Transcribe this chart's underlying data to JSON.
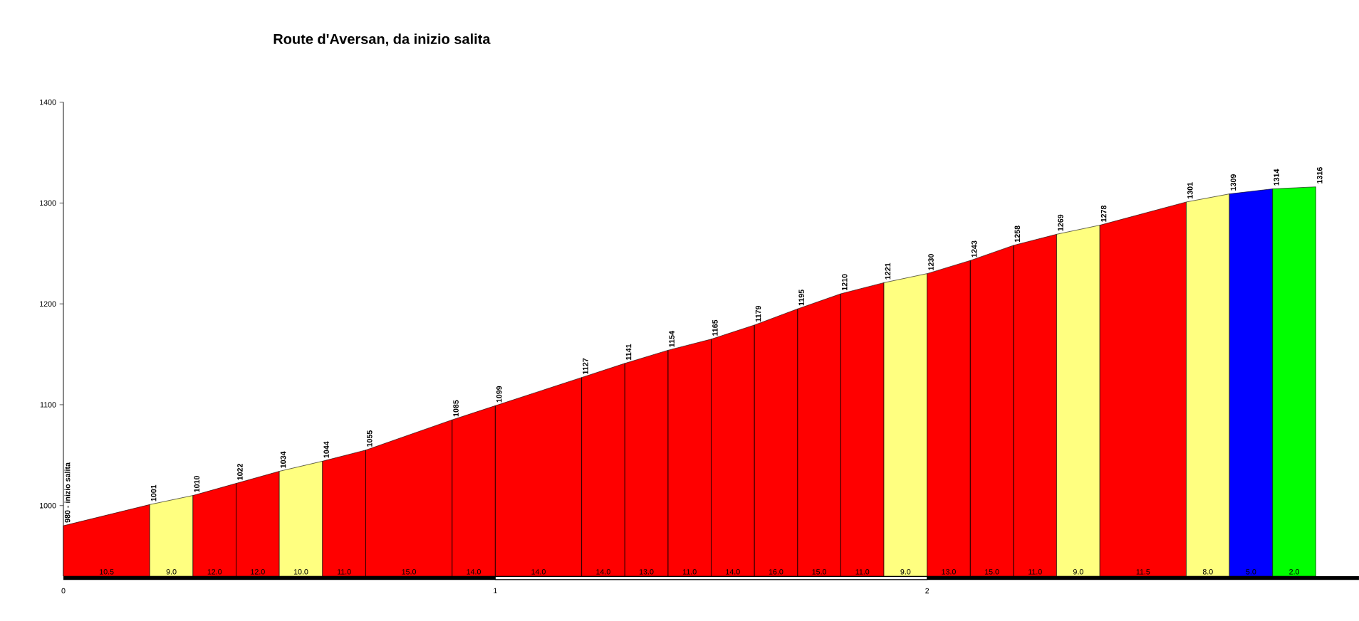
{
  "chart_data": {
    "type": "area",
    "title": "Route d'Aversan, da inizio salita",
    "series": [
      {
        "color": "#ff0000",
        "x": [
          0,
          0.2
        ],
        "values": [
          980,
          1001
        ],
        "value_labels": [
          "980 - inizio salita",
          "1001"
        ]
      },
      {
        "color": "#ffff80",
        "x": [
          0.2,
          0.3
        ],
        "values": [
          1001,
          1010
        ],
        "value_labels": [
          null,
          "1010"
        ]
      },
      {
        "color": "#ff0000",
        "x": [
          0.3,
          0.4,
          0.5
        ],
        "values": [
          1010,
          1022,
          1034
        ],
        "value_labels": [
          null,
          "1022",
          "1034"
        ]
      },
      {
        "color": "#ffff80",
        "x": [
          0.5,
          0.6
        ],
        "values": [
          1034,
          1044
        ],
        "value_labels": [
          null,
          "1044"
        ]
      },
      {
        "color": "#ff0000",
        "x": [
          0.6,
          0.7,
          0.9,
          1.0,
          1.2,
          1.3,
          1.4,
          1.5,
          1.6,
          1.7,
          1.8,
          1.9
        ],
        "values": [
          1044,
          1055,
          1085,
          1099,
          1127,
          1141,
          1154,
          1165,
          1179,
          1195,
          1210,
          1221
        ],
        "value_labels": [
          null,
          "1055",
          "1085",
          "1099",
          "1127",
          "1141",
          "1154",
          "1165",
          "1179",
          "1195",
          "1210",
          "1221"
        ]
      },
      {
        "color": "#ffff80",
        "x": [
          1.9,
          2.0
        ],
        "values": [
          1221,
          1230
        ],
        "value_labels": [
          null,
          "1230"
        ]
      },
      {
        "color": "#ff0000",
        "x": [
          2.0,
          2.1,
          2.2,
          2.3
        ],
        "values": [
          1230,
          1243,
          1258,
          1269
        ],
        "value_labels": [
          null,
          "1243",
          "1258",
          "1269"
        ]
      },
      {
        "color": "#ffff80",
        "x": [
          2.3,
          2.4
        ],
        "values": [
          1269,
          1278
        ],
        "value_labels": [
          null,
          "1278"
        ]
      },
      {
        "color": "#ff0000",
        "x": [
          2.4,
          2.6
        ],
        "values": [
          1278,
          1301
        ],
        "value_labels": [
          null,
          "1301"
        ]
      },
      {
        "color": "#ffff80",
        "x": [
          2.6,
          2.7
        ],
        "values": [
          1301,
          1309
        ],
        "value_labels": [
          null,
          "1309"
        ]
      },
      {
        "color": "#0000ff",
        "x": [
          2.7,
          2.8
        ],
        "values": [
          1309,
          1314
        ],
        "value_labels": [
          null,
          "1314"
        ]
      },
      {
        "color": "#00ff00",
        "x": [
          2.8,
          2.9
        ],
        "values": [
          1314,
          1316
        ],
        "value_labels": [
          null,
          "1316"
        ]
      }
    ],
    "annotations": [
      "10.5",
      "9.0",
      "12.0",
      "12.0",
      "10.0",
      "11.0",
      "15.0",
      "14.0",
      "14.0",
      "14.0",
      "13.0",
      "11.0",
      "14.0",
      "16.0",
      "15.0",
      "11.0",
      "9.0",
      "13.0",
      "15.0",
      "11.0",
      "9.0",
      "11.5",
      "8.0",
      "5.0",
      "2.0"
    ],
    "xlim": [
      0,
      3
    ],
    "xticks": [
      0,
      1,
      2
    ],
    "ylim": [
      930,
      1400
    ],
    "yticks": [
      1000,
      1100,
      1200,
      1300,
      1400
    ]
  }
}
